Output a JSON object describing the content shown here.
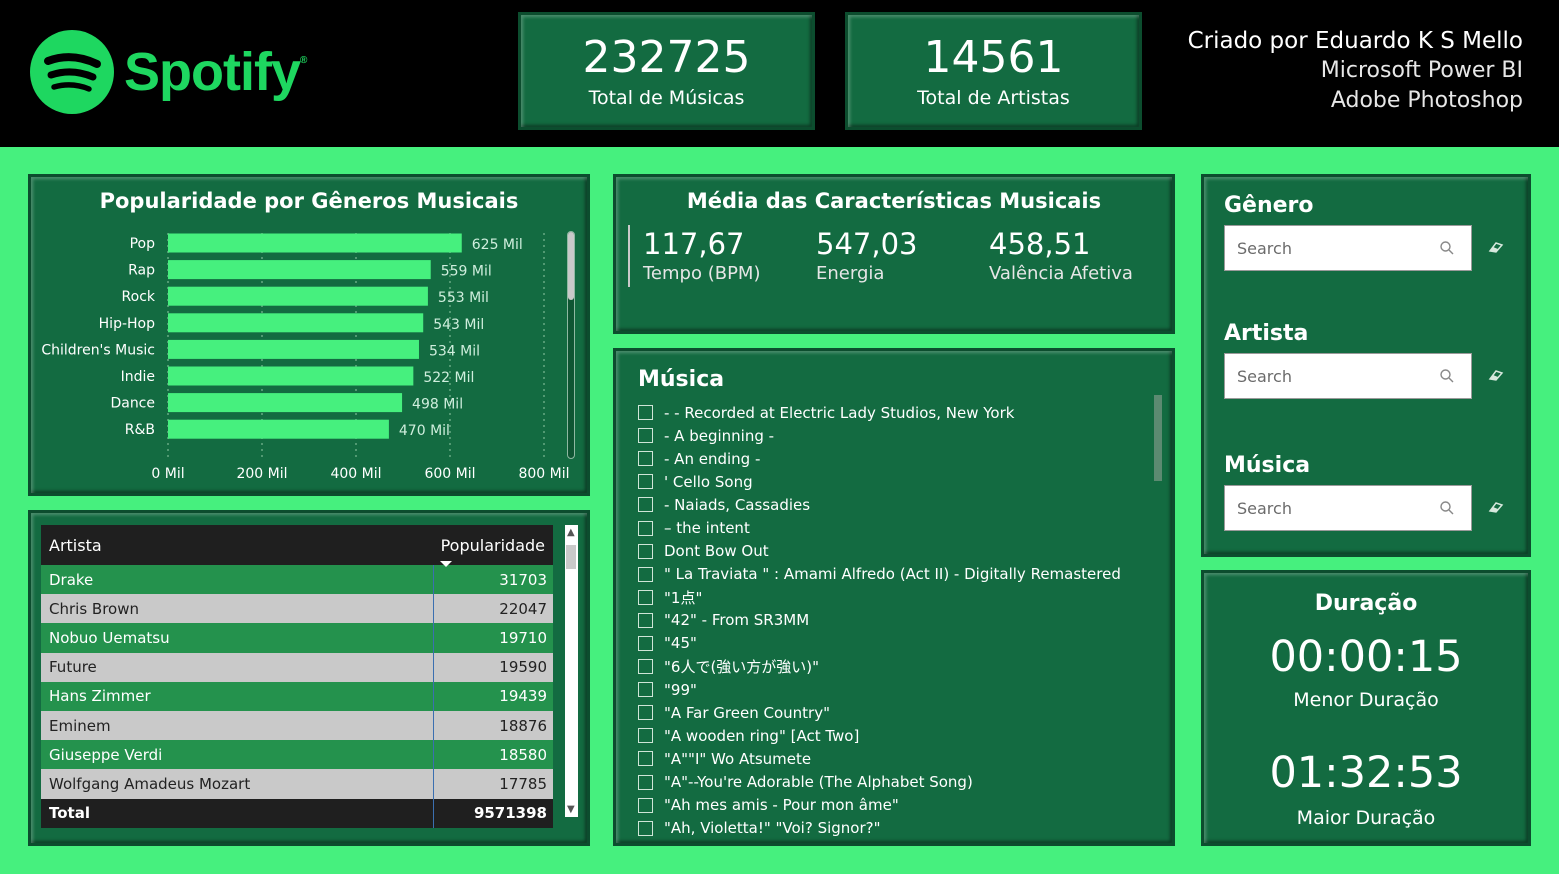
{
  "header": {
    "brand": "Spotify",
    "brand_mark": "®",
    "kpis": [
      {
        "value": "232725",
        "label": "Total de Músicas"
      },
      {
        "value": "14561",
        "label": "Total de Artistas"
      }
    ],
    "credits": [
      "Criado por Eduardo K S Mello",
      "Microsoft Power BI",
      "Adobe Photoshop"
    ]
  },
  "chart": {
    "title": "Popularidade por Gêneros Musicais",
    "x_ticks": [
      "0 Mil",
      "200 Mil",
      "400 Mil",
      "600 Mil",
      "800 Mil"
    ]
  },
  "chart_data": {
    "type": "bar",
    "orientation": "horizontal",
    "title": "Popularidade por Gêneros Musicais",
    "categories": [
      "Pop",
      "Rap",
      "Rock",
      "Hip-Hop",
      "Children's Music",
      "Indie",
      "Dance",
      "R&B"
    ],
    "values": [
      625,
      559,
      553,
      543,
      534,
      522,
      498,
      470
    ],
    "data_labels": [
      "625 Mil",
      "559 Mil",
      "553 Mil",
      "543 Mil",
      "534 Mil",
      "522 Mil",
      "498 Mil",
      "470 Mil"
    ],
    "xlim": [
      0,
      800
    ],
    "x_unit": "Mil",
    "grid": true,
    "bar_color": "#46f07e"
  },
  "table": {
    "headers": [
      "Artista",
      "Popularidade"
    ],
    "rows": [
      {
        "artist": "Drake",
        "value": "31703"
      },
      {
        "artist": "Chris Brown",
        "value": "22047"
      },
      {
        "artist": "Nobuo Uematsu",
        "value": "19710"
      },
      {
        "artist": "Future",
        "value": "19590"
      },
      {
        "artist": "Hans Zimmer",
        "value": "19439"
      },
      {
        "artist": "Eminem",
        "value": "18876"
      },
      {
        "artist": "Giuseppe Verdi",
        "value": "18580"
      },
      {
        "artist": "Wolfgang Amadeus Mozart",
        "value": "17785"
      }
    ],
    "total_label": "Total",
    "total_value": "9571398"
  },
  "averages": {
    "title": "Média das Características Musicais",
    "items": [
      {
        "value": "117,67",
        "label": "Tempo (BPM)"
      },
      {
        "value": "547,03",
        "label": "Energia"
      },
      {
        "value": "458,51",
        "label": "Valência Afetiva"
      }
    ]
  },
  "songs": {
    "title": "Música",
    "items": [
      "- - Recorded at Electric Lady Studios, New York",
      "- A beginning -",
      "- An ending -",
      "' Cello Song",
      "- Naiads, Cassadies",
      "– the intent",
      "Dont Bow Out",
      "\" La Traviata \" : Amami Alfredo (Act II) - Digitally Remastered",
      "\"1点\"",
      "\"42\" - From SR3MM",
      "\"45\"",
      "\"6人で(強い方が強い)\"",
      "\"99\"",
      "\"A Far Green Country\"",
      "\"A wooden ring\" [Act Two]",
      "\"A\"\"I\" Wo Atsumete",
      "\"A\"--You're Adorable (The Alphabet Song)",
      "\"Ah mes amis - Pour mon âme\"",
      "\"Ah, Violetta!\" \"Voi? Signor?\""
    ]
  },
  "filters": {
    "genre": {
      "title": "Gênero",
      "placeholder": "Search"
    },
    "artist": {
      "title": "Artista",
      "placeholder": "Search"
    },
    "music": {
      "title": "Música",
      "placeholder": "Search"
    }
  },
  "duration": {
    "title": "Duração",
    "min_value": "00:00:15",
    "min_label": "Menor Duração",
    "max_value": "01:32:53",
    "max_label": "Maior Duração"
  },
  "colors": {
    "background": "#46f07e",
    "panel": "#136b41",
    "header": "#000000",
    "brand": "#1ed760"
  }
}
